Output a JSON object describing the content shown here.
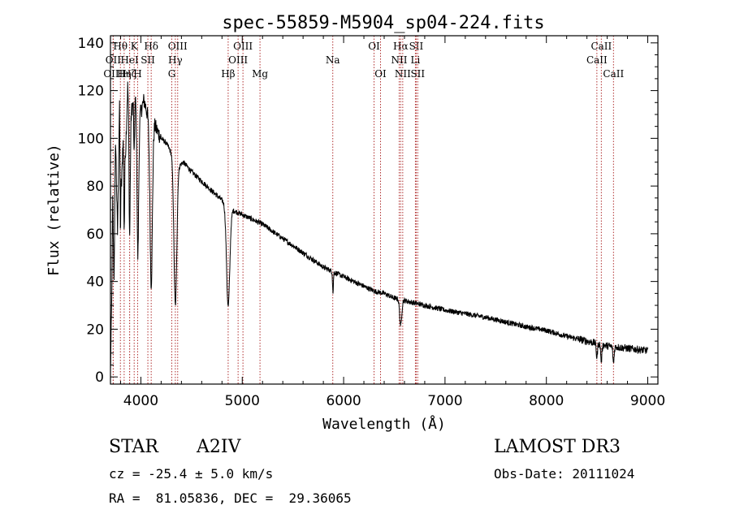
{
  "chart_data": {
    "type": "line",
    "title": "spec-55859-M5904_sp04-224.fits",
    "xlabel": "Wavelength (Å)",
    "ylabel": "Flux (relative)",
    "xlim": [
      3700,
      9100
    ],
    "ylim": [
      -3,
      143
    ],
    "xticks": [
      4000,
      5000,
      6000,
      7000,
      8000,
      9000
    ],
    "yticks": [
      0,
      20,
      40,
      60,
      80,
      100,
      120,
      140
    ],
    "line_color": "#000000",
    "marker_color": "#b03030",
    "spectrum": {
      "name": "flux",
      "anchors": [
        [
          3700,
          2
        ],
        [
          3712,
          30
        ],
        [
          3722,
          75
        ],
        [
          3735,
          40
        ],
        [
          3750,
          100
        ],
        [
          3770,
          60
        ],
        [
          3790,
          118
        ],
        [
          3810,
          80
        ],
        [
          3830,
          112
        ],
        [
          3850,
          95
        ],
        [
          3870,
          122
        ],
        [
          3900,
          110
        ],
        [
          3940,
          118
        ],
        [
          3980,
          108
        ],
        [
          4030,
          116
        ],
        [
          4080,
          108
        ],
        [
          4110,
          110
        ],
        [
          4150,
          104
        ],
        [
          4200,
          100
        ],
        [
          4250,
          98
        ],
        [
          4300,
          94
        ],
        [
          4360,
          88
        ],
        [
          4420,
          90
        ],
        [
          4500,
          86
        ],
        [
          4600,
          82
        ],
        [
          4700,
          78
        ],
        [
          4800,
          74
        ],
        [
          4850,
          72
        ],
        [
          4900,
          70
        ],
        [
          4950,
          69
        ],
        [
          5000,
          68
        ],
        [
          5100,
          66
        ],
        [
          5200,
          64
        ],
        [
          5300,
          61
        ],
        [
          5400,
          58
        ],
        [
          5500,
          55
        ],
        [
          5600,
          52
        ],
        [
          5700,
          49
        ],
        [
          5800,
          46
        ],
        [
          5900,
          44
        ],
        [
          6000,
          42
        ],
        [
          6100,
          40
        ],
        [
          6200,
          38
        ],
        [
          6300,
          36
        ],
        [
          6400,
          35
        ],
        [
          6500,
          33
        ],
        [
          6600,
          32
        ],
        [
          6700,
          31
        ],
        [
          6800,
          30
        ],
        [
          6900,
          29
        ],
        [
          7000,
          28
        ],
        [
          7200,
          26.5
        ],
        [
          7400,
          25
        ],
        [
          7600,
          23
        ],
        [
          7800,
          21
        ],
        [
          8000,
          19.5
        ],
        [
          8200,
          17
        ],
        [
          8400,
          15
        ],
        [
          8600,
          13
        ],
        [
          8800,
          12
        ],
        [
          9000,
          11
        ]
      ],
      "absorption_lines": [
        {
          "center": 3798,
          "depth": 40,
          "width": 4
        },
        {
          "center": 3835,
          "depth": 45,
          "width": 5
        },
        {
          "center": 3889,
          "depth": 55,
          "width": 6
        },
        {
          "center": 3934,
          "depth": 25,
          "width": 4
        },
        {
          "center": 3970,
          "depth": 60,
          "width": 8
        },
        {
          "center": 4102,
          "depth": 70,
          "width": 12
        },
        {
          "center": 4340,
          "depth": 60,
          "width": 14
        },
        {
          "center": 4861,
          "depth": 42,
          "width": 16
        },
        {
          "center": 5895,
          "depth": 9,
          "width": 4
        },
        {
          "center": 6563,
          "depth": 11,
          "width": 10
        },
        {
          "center": 8498,
          "depth": 6,
          "width": 6
        },
        {
          "center": 8542,
          "depth": 7,
          "width": 6
        },
        {
          "center": 8662,
          "depth": 7,
          "width": 6
        }
      ]
    },
    "line_markers": [
      {
        "label": "Hθ",
        "wavelength": 3798,
        "row": 1
      },
      {
        "label": "OII",
        "wavelength": 3727,
        "row": 2
      },
      {
        "label": "OIII",
        "wavelength": 3727,
        "row": 3
      },
      {
        "label": "Hη",
        "wavelength": 3835,
        "row": 3
      },
      {
        "label": "Hζ",
        "wavelength": 3889,
        "row": 3
      },
      {
        "label": "HeI",
        "wavelength": 3889,
        "row": 2
      },
      {
        "label": "K",
        "wavelength": 3934,
        "row": 1
      },
      {
        "label": "SII",
        "wavelength": 4069,
        "row": 2
      },
      {
        "label": "H",
        "wavelength": 3968,
        "row": 3
      },
      {
        "label": "Hδ",
        "wavelength": 4102,
        "row": 1
      },
      {
        "label": "OIII",
        "wavelength": 4363,
        "row": 1
      },
      {
        "label": "Hγ",
        "wavelength": 4340,
        "row": 2
      },
      {
        "label": "G",
        "wavelength": 4305,
        "row": 3
      },
      {
        "label": "Hβ",
        "wavelength": 4861,
        "row": 3
      },
      {
        "label": "OIII",
        "wavelength": 5007,
        "row": 1
      },
      {
        "label": "OIII",
        "wavelength": 4959,
        "row": 2
      },
      {
        "label": "Mg",
        "wavelength": 5175,
        "row": 3
      },
      {
        "label": "Na",
        "wavelength": 5893,
        "row": 2
      },
      {
        "label": "OI",
        "wavelength": 6300,
        "row": 1
      },
      {
        "label": "OI",
        "wavelength": 6364,
        "row": 3
      },
      {
        "label": "Hα",
        "wavelength": 6563,
        "row": 1
      },
      {
        "label": "NII",
        "wavelength": 6548,
        "row": 2
      },
      {
        "label": "NII",
        "wavelength": 6583,
        "row": 3
      },
      {
        "label": "SII",
        "wavelength": 6716,
        "row": 1
      },
      {
        "label": "Li",
        "wavelength": 6708,
        "row": 2
      },
      {
        "label": "SII",
        "wavelength": 6731,
        "row": 3
      },
      {
        "label": "CaII",
        "wavelength": 8542,
        "row": 1
      },
      {
        "label": "CaII",
        "wavelength": 8498,
        "row": 2
      },
      {
        "label": "CaII",
        "wavelength": 8662,
        "row": 3
      }
    ]
  },
  "info": {
    "object_class": "STAR",
    "subclass": "A2IV",
    "survey": "LAMOST DR3",
    "redshift": "cz = -25.4 ± 5.0 km/s",
    "obs_date": "Obs-Date: 20111024",
    "coords": "RA =  81.05836, DEC =  29.36065"
  }
}
